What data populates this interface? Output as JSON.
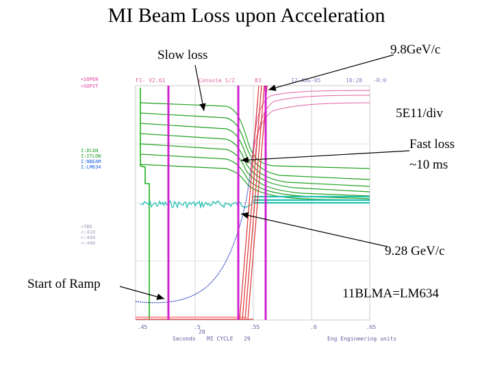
{
  "slide": {
    "title": "MI Beam Loss upon Acceleration"
  },
  "annotations": {
    "slow_loss": "Slow loss",
    "momentum_top": "9.8GeV/c",
    "scale": "5E11/div",
    "fast_loss_line1": "Fast loss",
    "fast_loss_line2": "~10 ms",
    "momentum_mid": "9.28 GeV/c",
    "start_of_ramp": "Start of Ramp",
    "blm_id": "11BLMA=LM634"
  },
  "scope_header": {
    "left": "F1- V2.61",
    "center": "Console 1/2",
    "ch": "83",
    "date": "12-AUG-05",
    "time": "10:28",
    "right": "-R:0"
  },
  "scope_left_labels": [
    {
      "text": "<SOPEN",
      "color": "#e040a0"
    },
    {
      "text": "<SOPIT",
      "color": "#e040a0"
    },
    {
      "text": "I:DCAN",
      "color": "#20a020"
    },
    {
      "text": "I:ITLOW",
      "color": "#20a020"
    },
    {
      "text": "I:NBEAM",
      "color": "#2060e0"
    },
    {
      "text": "I:LM634",
      "color": "#2060e0"
    },
    {
      "text": "<TBD",
      "color": "#a0a0c0"
    },
    {
      "text": "<:410",
      "color": "#a0a0c0"
    },
    {
      "text": "<:440",
      "color": "#a0a0c0"
    },
    {
      "text": "<:440",
      "color": "#a0a0c0"
    }
  ],
  "scope_axis": {
    "x_ticks": [
      ".45",
      ".5",
      ".55",
      ".6",
      ".65"
    ],
    "footer_left": "Seconds",
    "footer_center": "MI CYCLE",
    "footer_ch": "29",
    "footer_right": "Eng Engineering units",
    "footer_num": "20"
  },
  "colors": {
    "green": "#1fa01f",
    "teal": "#20c0b0",
    "magenta": "#d020d0",
    "red": "#e03030",
    "blue": "#3040c0",
    "pink": "#e060a0"
  }
}
